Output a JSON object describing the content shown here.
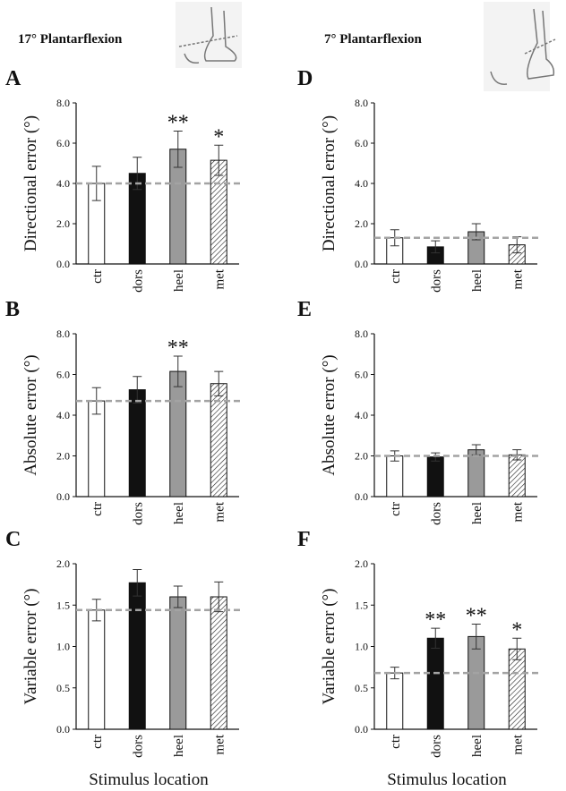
{
  "column_titles": [
    "17° Plantarflexion",
    "7° Plantarflexion"
  ],
  "chart_data": [
    {
      "type": "bar",
      "panel_label": "A",
      "ylabel": "Directional error (°)",
      "categories": [
        "ctr",
        "dors",
        "heel",
        "met"
      ],
      "values": [
        4.0,
        4.5,
        5.7,
        5.15
      ],
      "errors": [
        0.85,
        0.8,
        0.9,
        0.75
      ],
      "significance": [
        null,
        null,
        "**",
        "*"
      ],
      "reference_line": 4.0,
      "ylim": [
        0,
        8
      ],
      "yticks": [
        {
          "value": 0,
          "label": "0.0"
        },
        {
          "value": 2,
          "label": "2.0"
        },
        {
          "value": 4,
          "label": "4.0"
        },
        {
          "value": 6,
          "label": "6.0"
        },
        {
          "value": 8,
          "label": "8.0"
        }
      ]
    },
    {
      "type": "bar",
      "panel_label": "B",
      "ylabel": "Absolute error (°)",
      "categories": [
        "ctr",
        "dors",
        "heel",
        "met"
      ],
      "values": [
        4.7,
        5.25,
        6.15,
        5.55
      ],
      "errors": [
        0.65,
        0.65,
        0.75,
        0.6
      ],
      "significance": [
        null,
        null,
        "**",
        null
      ],
      "reference_line": 4.7,
      "ylim": [
        0,
        8
      ],
      "yticks": [
        {
          "value": 0,
          "label": "0.0"
        },
        {
          "value": 2,
          "label": "2.0"
        },
        {
          "value": 4,
          "label": "4.0"
        },
        {
          "value": 6,
          "label": "6.0"
        },
        {
          "value": 8,
          "label": "8.0"
        }
      ]
    },
    {
      "type": "bar",
      "panel_label": "C",
      "ylabel": "Variable error (°)",
      "xlabel": "Stimulus location",
      "categories": [
        "ctr",
        "dors",
        "heel",
        "met"
      ],
      "values": [
        1.44,
        1.77,
        1.6,
        1.6
      ],
      "errors": [
        0.13,
        0.16,
        0.13,
        0.18
      ],
      "significance": [
        null,
        null,
        null,
        null
      ],
      "reference_line": 1.44,
      "ylim": [
        0,
        2
      ],
      "yticks": [
        {
          "value": 0,
          "label": "0.0"
        },
        0.5,
        {
          "value": 1,
          "label": "1.0"
        },
        1.5,
        {
          "value": 2,
          "label": "2.0"
        }
      ]
    },
    {
      "type": "bar",
      "panel_label": "D",
      "ylabel": "Directional error (°)",
      "categories": [
        "ctr",
        "dors",
        "heel",
        "met"
      ],
      "values": [
        1.3,
        0.85,
        1.6,
        0.95
      ],
      "errors": [
        0.4,
        0.3,
        0.4,
        0.4
      ],
      "significance": [
        null,
        null,
        null,
        null
      ],
      "reference_line": 1.3,
      "ylim": [
        0,
        8
      ],
      "yticks": [
        {
          "value": 0,
          "label": "0.0"
        },
        {
          "value": 2,
          "label": "2.0"
        },
        {
          "value": 4,
          "label": "4.0"
        },
        {
          "value": 6,
          "label": "6.0"
        },
        {
          "value": 8,
          "label": "8.0"
        }
      ]
    },
    {
      "type": "bar",
      "panel_label": "E",
      "ylabel": "Absolute error (°)",
      "categories": [
        "ctr",
        "dors",
        "heel",
        "met"
      ],
      "values": [
        2.0,
        1.95,
        2.3,
        2.05
      ],
      "errors": [
        0.25,
        0.2,
        0.25,
        0.25
      ],
      "significance": [
        null,
        null,
        null,
        null
      ],
      "reference_line": 2.0,
      "ylim": [
        0,
        8
      ],
      "yticks": [
        {
          "value": 0,
          "label": "0.0"
        },
        {
          "value": 2,
          "label": "2.0"
        },
        {
          "value": 4,
          "label": "4.0"
        },
        {
          "value": 6,
          "label": "6.0"
        },
        {
          "value": 8,
          "label": "8.0"
        }
      ]
    },
    {
      "type": "bar",
      "panel_label": "F",
      "ylabel": "Variable error (°)",
      "xlabel": "Stimulus location",
      "categories": [
        "ctr",
        "dors",
        "heel",
        "met"
      ],
      "values": [
        0.68,
        1.1,
        1.12,
        0.97
      ],
      "errors": [
        0.07,
        0.12,
        0.15,
        0.13
      ],
      "significance": [
        null,
        "**",
        "**",
        "*"
      ],
      "reference_line": 0.68,
      "ylim": [
        0,
        2
      ],
      "yticks": [
        {
          "value": 0,
          "label": "0.0"
        },
        0.5,
        {
          "value": 1,
          "label": "1.0"
        },
        1.5,
        {
          "value": 2,
          "label": "2.0"
        }
      ]
    }
  ],
  "colors": [
    "#ffffff",
    "#111111",
    "#9a9a9a",
    "#ffffff"
  ],
  "hatch": [
    false,
    false,
    false,
    true
  ],
  "reference_color": "#a3a3a3"
}
